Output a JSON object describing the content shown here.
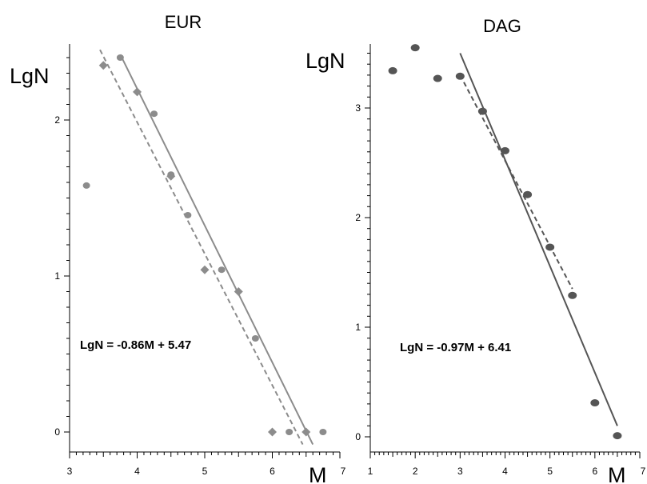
{
  "chart_data": [
    {
      "type": "scatter",
      "title": "EUR",
      "xlabel": "M",
      "ylabel": "LgN",
      "xlim": [
        3,
        7
      ],
      "ylim": [
        -0.1,
        2.5
      ],
      "x_ticks": [
        3,
        4,
        5,
        6,
        7
      ],
      "y_ticks": [
        0,
        1,
        2
      ],
      "equation": "LgN = -0.86M + 5.47",
      "colors": {
        "points": "#8c8c8c",
        "lines": "#8c8c8c"
      },
      "series": [
        {
          "marker": "circle",
          "points": [
            [
              3.25,
              1.58
            ],
            [
              3.75,
              2.4
            ],
            [
              4.25,
              2.04
            ],
            [
              4.5,
              1.65
            ],
            [
              4.75,
              1.39
            ],
            [
              5.25,
              1.04
            ],
            [
              5.75,
              0.6
            ],
            [
              6.25,
              0.0
            ],
            [
              6.75,
              0.0
            ]
          ]
        },
        {
          "marker": "diamond",
          "points": [
            [
              3.5,
              2.35
            ],
            [
              4.0,
              2.18
            ],
            [
              4.5,
              1.64
            ],
            [
              5.0,
              1.04
            ],
            [
              5.5,
              0.9
            ],
            [
              6.0,
              0.0
            ],
            [
              6.5,
              0.0
            ]
          ]
        }
      ],
      "fit_lines": [
        {
          "style": "solid",
          "from": [
            3.75,
            2.42
          ],
          "to": [
            6.6,
            -0.08
          ]
        },
        {
          "style": "dashed",
          "from": [
            3.45,
            2.45
          ],
          "to": [
            6.45,
            -0.08
          ]
        }
      ]
    },
    {
      "type": "scatter",
      "title": "DAG",
      "xlabel": "M",
      "ylabel": "LgN",
      "xlim": [
        1,
        7
      ],
      "ylim": [
        -0.1,
        3.65
      ],
      "x_ticks": [
        1,
        2,
        3,
        4,
        5,
        6,
        7
      ],
      "y_ticks": [
        0,
        1,
        2,
        3
      ],
      "equation": "LgN = -0.97M + 6.41",
      "colors": {
        "points": "#555555",
        "lines": "#555555"
      },
      "series": [
        {
          "marker": "circle",
          "points": [
            [
              1.5,
              3.34
            ],
            [
              2.0,
              3.55
            ],
            [
              2.5,
              3.27
            ],
            [
              3.0,
              3.29
            ],
            [
              3.5,
              2.97
            ],
            [
              4.0,
              2.61
            ],
            [
              4.5,
              2.21
            ],
            [
              5.0,
              1.73
            ],
            [
              5.5,
              1.29
            ],
            [
              6.0,
              0.31
            ],
            [
              6.5,
              0.01
            ]
          ]
        }
      ],
      "fit_lines": [
        {
          "style": "solid",
          "from": [
            3.0,
            3.5
          ],
          "to": [
            6.5,
            0.1
          ]
        },
        {
          "style": "dashed",
          "from": [
            3.0,
            3.3
          ],
          "to": [
            5.5,
            1.35
          ]
        }
      ]
    }
  ]
}
